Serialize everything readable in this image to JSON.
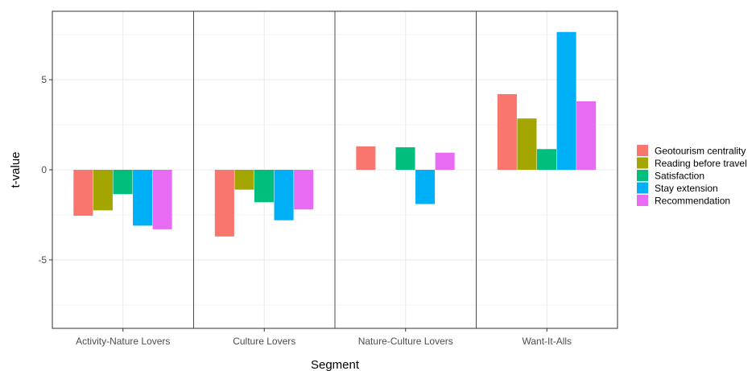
{
  "chart_data": {
    "type": "bar",
    "xlabel": "Segment",
    "ylabel": "t-value",
    "ylim": [
      -8.8,
      8.8
    ],
    "yticks": [
      -5,
      0,
      5
    ],
    "ytick_labels": [
      "-5",
      "0",
      "5"
    ],
    "grid": true,
    "facet_dividers": true,
    "legend_position": "right",
    "categories": [
      "Activity-Nature Lovers",
      "Culture Lovers",
      "Nature-Culture Lovers",
      "Want-It-Alls"
    ],
    "series": [
      {
        "name": "Geotourism centrality",
        "color": "#F8766D",
        "values": [
          -2.55,
          -3.7,
          1.3,
          4.2
        ]
      },
      {
        "name": "Reading before travel",
        "color": "#A3A500",
        "values": [
          -2.25,
          -1.1,
          null,
          2.85
        ]
      },
      {
        "name": "Satisfaction",
        "color": "#00BF7D",
        "values": [
          -1.35,
          -1.8,
          1.25,
          1.15
        ]
      },
      {
        "name": "Stay extension",
        "color": "#00B0F6",
        "values": [
          -3.1,
          -2.8,
          -1.9,
          7.65
        ]
      },
      {
        "name": "Recommendation",
        "color": "#E76BF3",
        "values": [
          -3.3,
          -2.2,
          0.95,
          3.8
        ]
      }
    ]
  }
}
